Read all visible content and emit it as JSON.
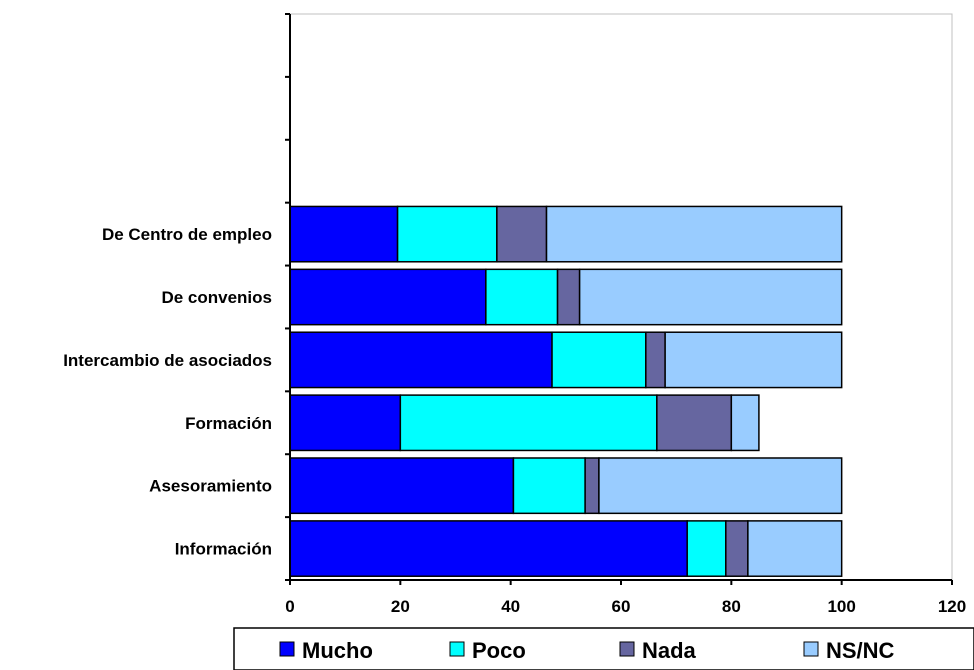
{
  "chart_data": {
    "type": "bar",
    "orientation": "horizontal",
    "stacked": true,
    "categories": [
      "Información",
      "Asesoramiento",
      "Formación",
      "Intercambio de asociados",
      "De convenios",
      "De Centro de empleo"
    ],
    "series": [
      {
        "name": "Mucho",
        "color": "#0000ff",
        "values": [
          72,
          40.5,
          20,
          47.5,
          35.5,
          19.5
        ]
      },
      {
        "name": "Poco",
        "color": "#00ffff",
        "values": [
          7,
          13,
          46.5,
          17,
          13,
          18
        ]
      },
      {
        "name": "Nada",
        "color": "#6666a0",
        "values": [
          4,
          2.5,
          13.5,
          3.5,
          4,
          9
        ]
      },
      {
        "name": "NS/NC",
        "color": "#99ccff",
        "values": [
          17,
          44,
          5,
          32,
          47.5,
          53.5
        ]
      }
    ],
    "x_ticks": [
      "0",
      "20",
      "40",
      "60",
      "80",
      "100",
      "120"
    ],
    "xlim": [
      0,
      120
    ],
    "category_slots": 9,
    "grid": false,
    "legend_position": "bottom"
  }
}
